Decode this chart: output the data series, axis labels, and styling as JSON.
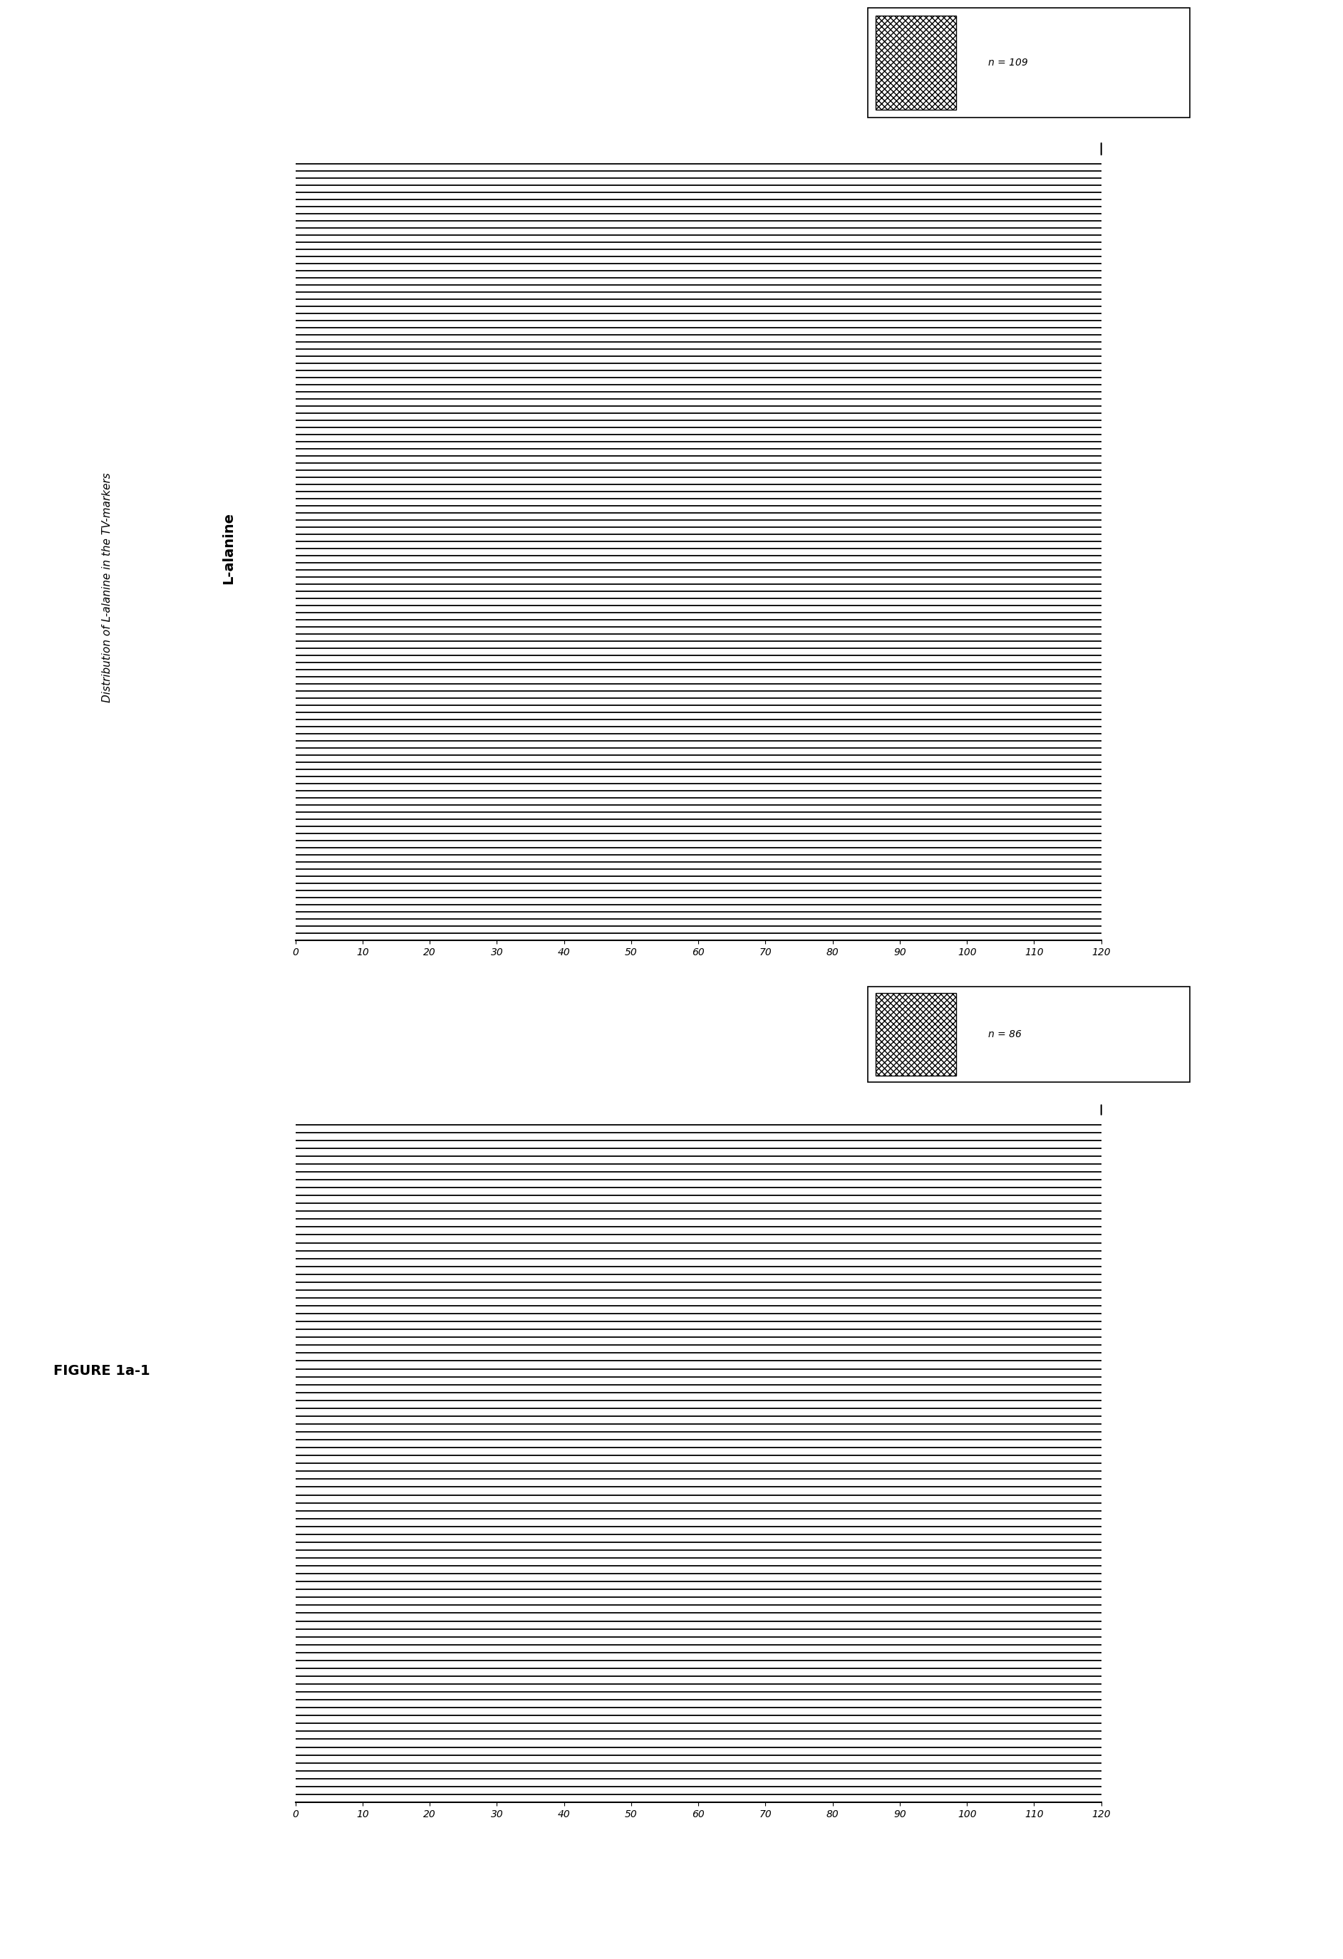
{
  "title": "Distribution of L-alanine in the TV-markers",
  "ylabel": "L-alanine",
  "figure_label": "FIGURE 1a-1",
  "n1": 109,
  "n2": 86,
  "xmin": 0,
  "xmax": 120,
  "xticks": [
    0,
    10,
    20,
    30,
    40,
    50,
    60,
    70,
    80,
    90,
    100,
    110,
    120
  ],
  "background_color": "#ffffff",
  "bar_color": "#000000",
  "bar_linewidth": 1.3,
  "title_fontsize": 11,
  "label_fontsize": 14,
  "tick_fontsize": 10,
  "legend_fontsize": 10,
  "figlabel_fontsize": 14
}
